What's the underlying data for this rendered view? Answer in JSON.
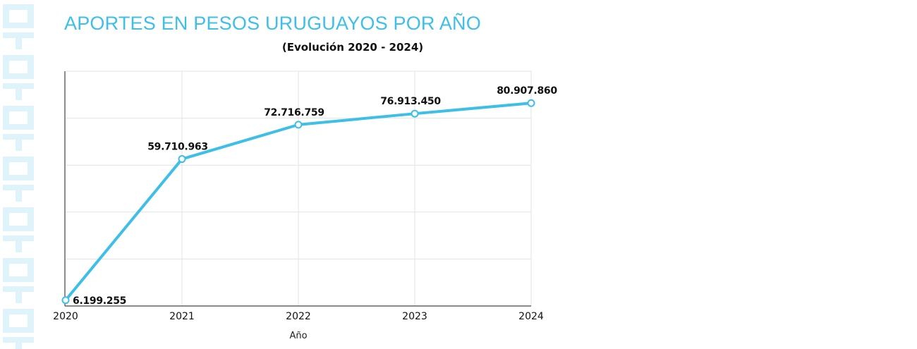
{
  "chart_data": {
    "type": "line",
    "title": "APORTES EN PESOS URUGUAYOS POR AÑO",
    "subtitle": "(Evolución 2020 - 2024)",
    "xlabel": "Año",
    "ylabel": "",
    "categories": [
      "2020",
      "2021",
      "2022",
      "2023",
      "2024"
    ],
    "series": [
      {
        "values": [
          6199255,
          59710963,
          72716759,
          76913450,
          80907860
        ],
        "labels": [
          "6.199.255",
          "59.710.963",
          "72.716.759",
          "76.913.450",
          "80.907.860"
        ]
      }
    ],
    "ylim": [
      4000000,
      93000000
    ],
    "grid": true,
    "legend": "none",
    "colors": {
      "line": "#3dbfe8",
      "axis": "#444444",
      "grid": "#e3e3e3",
      "watermark": "#dff3fb"
    }
  }
}
